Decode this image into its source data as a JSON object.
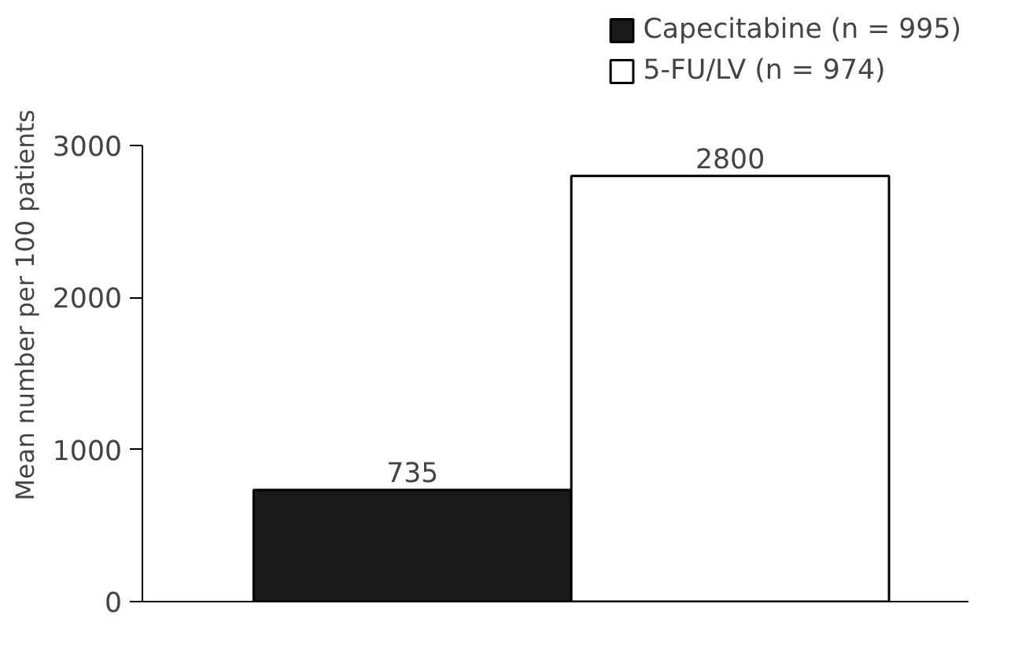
{
  "chart_data": {
    "type": "bar",
    "ylabel": "Mean number per 100 patients",
    "categories": [
      null,
      null
    ],
    "series": [
      {
        "name": "Capecitabine (n = 995)",
        "color": "#1a1a1a",
        "values": [
          735,
          null
        ]
      },
      {
        "name": "5-FU/LV (n = 974)",
        "color": "#ffffff",
        "values": [
          null,
          2800
        ]
      }
    ],
    "ylim": [
      0,
      3000
    ],
    "yticks": [
      0,
      1000,
      2000,
      3000
    ],
    "grid": false,
    "legend": "top right",
    "data_labels": true
  }
}
